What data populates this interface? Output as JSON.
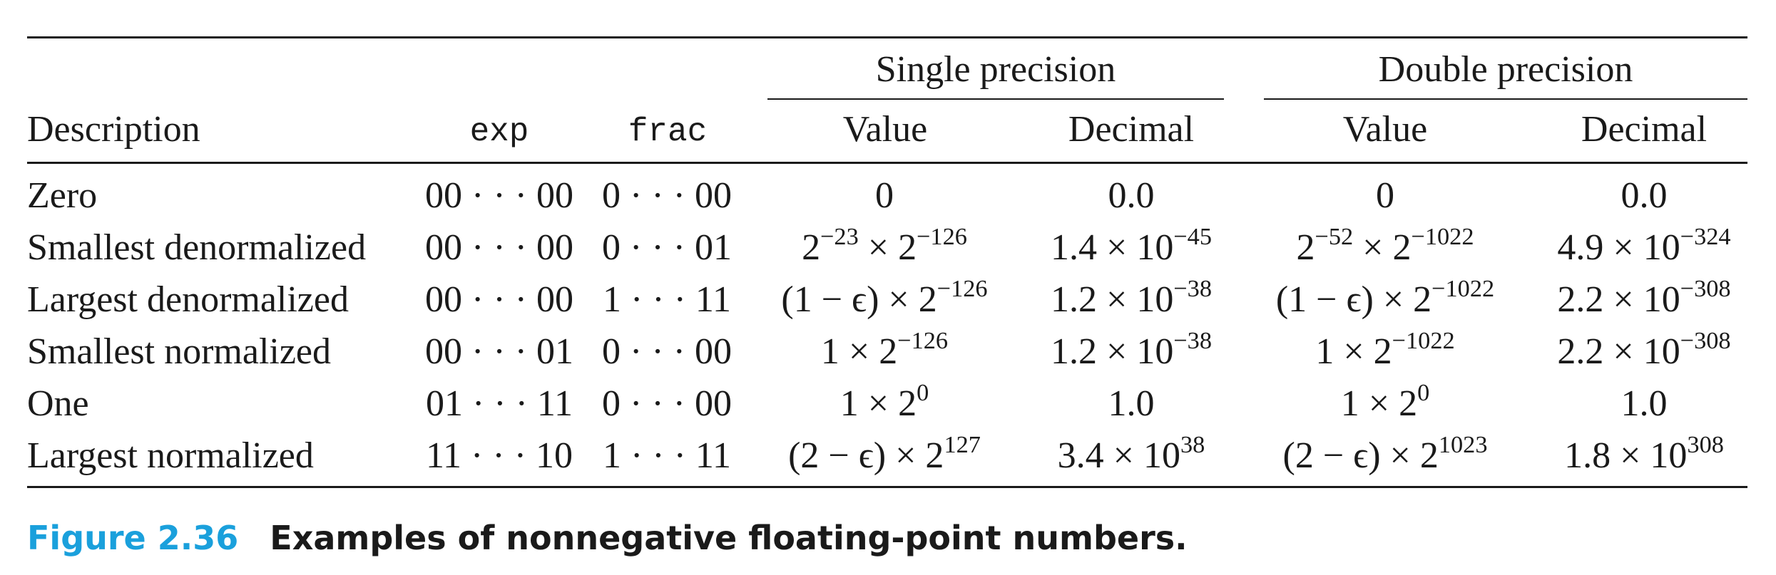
{
  "table": {
    "group_headers": {
      "single": "Single precision",
      "double": "Double precision"
    },
    "columns": {
      "description": "Description",
      "exp": "exp",
      "frac": "frac",
      "single_value": "Value",
      "single_decimal": "Decimal",
      "double_value": "Value",
      "double_decimal": "Decimal"
    },
    "rows": [
      {
        "description": "Zero",
        "exp": "00 · · · 00",
        "frac": "0 · · · 00",
        "sv": {
          "base": "0",
          "exp": ""
        },
        "sd": {
          "base": "0.0",
          "exp": ""
        },
        "dv": {
          "base": "0",
          "exp": ""
        },
        "dd": {
          "base": "0.0",
          "exp": ""
        }
      },
      {
        "description": "Smallest denormalized",
        "exp": "00 · · · 00",
        "frac": "0 · · · 01",
        "sv": {
          "pre": "2",
          "pre_exp": "−23",
          "base": " × 2",
          "exp": "−126"
        },
        "sd": {
          "base": "1.4 × 10",
          "exp": "−45"
        },
        "dv": {
          "pre": "2",
          "pre_exp": "−52",
          "base": " × 2",
          "exp": "−1022"
        },
        "dd": {
          "base": "4.9 × 10",
          "exp": "−324"
        }
      },
      {
        "description": "Largest denormalized",
        "exp": "00 · · · 00",
        "frac": "1 · · · 11",
        "sv": {
          "base": "(1 − ϵ) × 2",
          "exp": "−126"
        },
        "sd": {
          "base": "1.2 × 10",
          "exp": "−38"
        },
        "dv": {
          "base": "(1 − ϵ) × 2",
          "exp": "−1022"
        },
        "dd": {
          "base": "2.2 × 10",
          "exp": "−308"
        }
      },
      {
        "description": "Smallest normalized",
        "exp": "00 · · · 01",
        "frac": "0 · · · 00",
        "sv": {
          "base": "1 × 2",
          "exp": "−126"
        },
        "sd": {
          "base": "1.2 × 10",
          "exp": "−38"
        },
        "dv": {
          "base": "1 × 2",
          "exp": "−1022"
        },
        "dd": {
          "base": "2.2 × 10",
          "exp": "−308"
        }
      },
      {
        "description": "One",
        "exp": "01 · · · 11",
        "frac": "0 · · · 00",
        "sv": {
          "base": "1 × 2",
          "exp": "0"
        },
        "sd": {
          "base": "1.0",
          "exp": ""
        },
        "dv": {
          "base": "1 × 2",
          "exp": "0"
        },
        "dd": {
          "base": "1.0",
          "exp": ""
        }
      },
      {
        "description": "Largest normalized",
        "exp": "11 · · · 10",
        "frac": "1 · · · 11",
        "sv": {
          "base": "(2 − ϵ) × 2",
          "exp": "127"
        },
        "sd": {
          "base": "3.4 × 10",
          "exp": "38"
        },
        "dv": {
          "base": "(2 − ϵ) × 2",
          "exp": "1023"
        },
        "dd": {
          "base": "1.8 × 10",
          "exp": "308"
        }
      }
    ]
  },
  "caption": {
    "label": "Figure 2.36",
    "title": "Examples of nonnegative floating-point numbers."
  }
}
